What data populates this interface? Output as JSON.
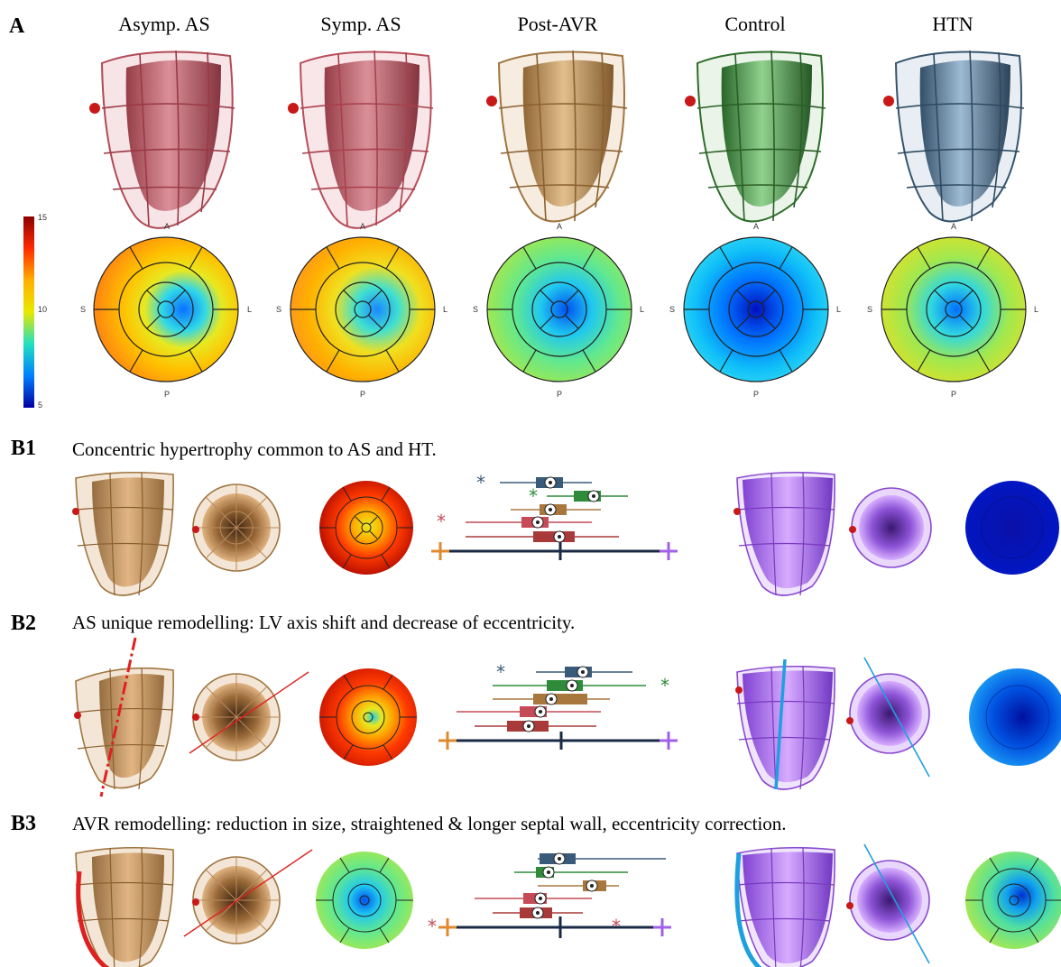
{
  "panel_a": {
    "letter": "A",
    "columns": [
      {
        "title": "Asymp. AS",
        "color": "#c85a66",
        "fill": "#b84652"
      },
      {
        "title": "Symp. AS",
        "color": "#d0606b",
        "fill": "#c44b57"
      },
      {
        "title": "Post-AVR",
        "color": "#a57a45",
        "fill": "#b98a52"
      },
      {
        "title": "Control",
        "color": "#3e7f3a",
        "fill": "#3c8d3a"
      },
      {
        "title": "HTN",
        "color": "#3f5f78",
        "fill": "#4d708c"
      }
    ],
    "colorbar": {
      "max": "15",
      "mid": "10",
      "min": "5"
    },
    "bullseye_labels": {
      "anterior": "A",
      "septal": "S",
      "lateral": "L",
      "posterior": "P"
    }
  },
  "rows": [
    {
      "letter": "B1",
      "caption": "Concentric hypertrophy common to AS and HT."
    },
    {
      "letter": "B2",
      "caption": "AS unique remodelling: LV axis shift and decrease of eccentricity."
    },
    {
      "letter": "B3",
      "caption": "AVR remodelling: reduction in size, straightened & longer septal wall, eccentricity correction."
    }
  ],
  "colors": {
    "tan_mesh": "#b8885a",
    "tan_fill": "#c89a62",
    "purple_mesh": "#8a4ad0",
    "purple_fill": "#a86ae8",
    "axis_red": "#e02020",
    "axis_blue": "#1ea0e0",
    "box_blue": "#3a5a7a",
    "box_green": "#2f8a3a",
    "box_tan": "#a8773e",
    "box_red": "#c44b57",
    "box_darkred": "#a83a3a",
    "axis_orange": "#e08a30",
    "axis_navy": "#1a2a44",
    "axis_purple": "#a060e8"
  }
}
